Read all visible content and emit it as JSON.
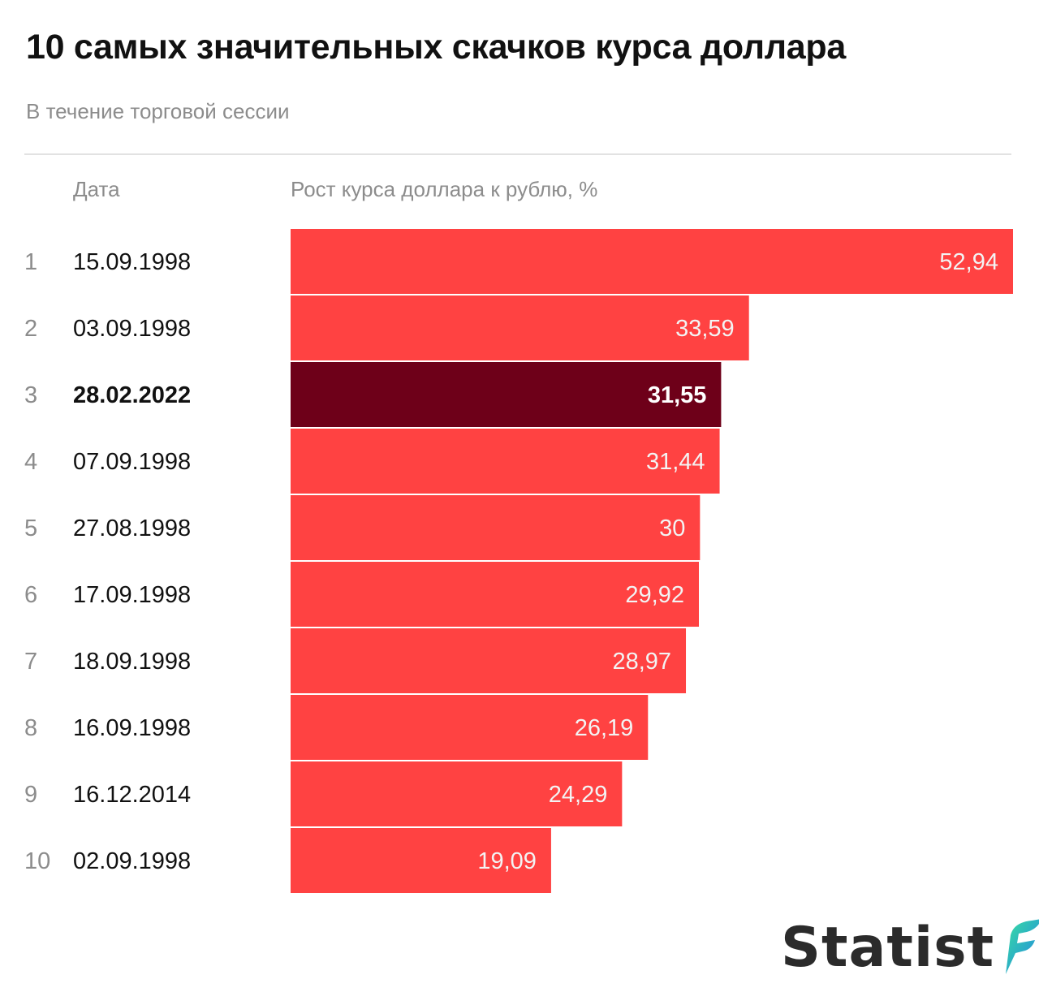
{
  "title": "10 самых значительных скачков курса доллара",
  "subtitle": "В течение торговой сессии",
  "columns": {
    "date": "Дата",
    "value": "Рост курса доллара к рублю, %"
  },
  "logo": {
    "text": "Statist",
    "icon": "statist-leaf-logo-icon"
  },
  "colors": {
    "bar": "#ff4242",
    "highlight": "#6e0019",
    "label_light": "#f3f3f3",
    "rank": "#8c8c8c"
  },
  "chart_data": {
    "type": "bar",
    "orientation": "horizontal",
    "ranks": [
      "1",
      "2",
      "3",
      "4",
      "5",
      "6",
      "7",
      "8",
      "9",
      "10"
    ],
    "categories": [
      "15.09.1998",
      "03.09.1998",
      "28.02.2022",
      "07.09.1998",
      "27.08.1998",
      "17.09.1998",
      "18.09.1998",
      "16.09.1998",
      "16.12.2014",
      "02.09.1998"
    ],
    "values": [
      52.94,
      33.59,
      31.55,
      31.44,
      30,
      29.92,
      28.97,
      26.19,
      24.29,
      19.09
    ],
    "value_labels": [
      "52,94",
      "33,59",
      "31,55",
      "31,44",
      "30",
      "29,92",
      "28,97",
      "26,19",
      "24,29",
      "19,09"
    ],
    "highlight_index": 2,
    "xlim": [
      0,
      52.94
    ],
    "grid": false,
    "legend": "none"
  }
}
